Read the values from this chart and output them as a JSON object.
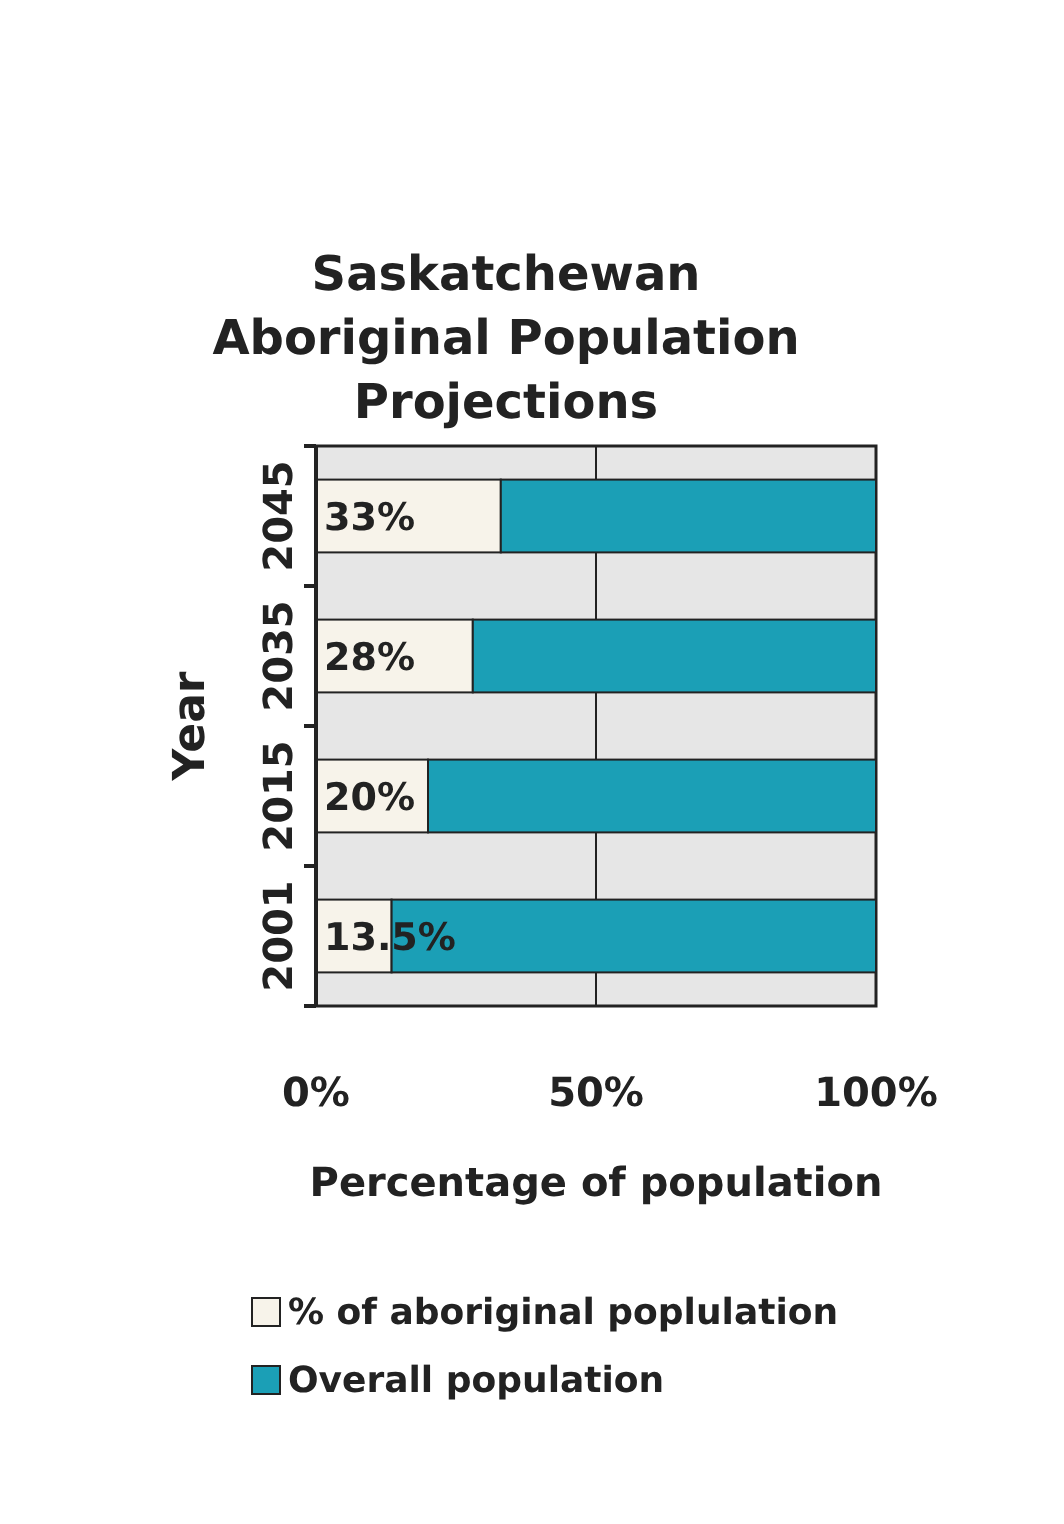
{
  "chart_data": {
    "type": "bar",
    "title": "Saskatchewan Aboriginal Population Projections",
    "orientation": "horizontal",
    "stacked": true,
    "categories": [
      "2045",
      "2035",
      "2015",
      "2001"
    ],
    "series": [
      {
        "name": "% of aboriginal poplulation",
        "color": "#f7f3ea",
        "values": [
          33,
          28,
          20,
          13.5
        ],
        "value_labels": [
          "33%",
          "28%",
          "20%",
          "13.5%"
        ]
      },
      {
        "name": "Overall population",
        "color": "#1b9fb6",
        "values": [
          67,
          72,
          80,
          86.5
        ]
      }
    ],
    "xlim": [
      0,
      100
    ],
    "xticks": [
      {
        "value": 0,
        "label": "0%"
      },
      {
        "value": 50,
        "label": "50%"
      },
      {
        "value": 100,
        "label": "100%"
      }
    ],
    "xlabel": "Percentage of population",
    "ylabel": "Year",
    "grid": "x",
    "legend": "bottom"
  }
}
